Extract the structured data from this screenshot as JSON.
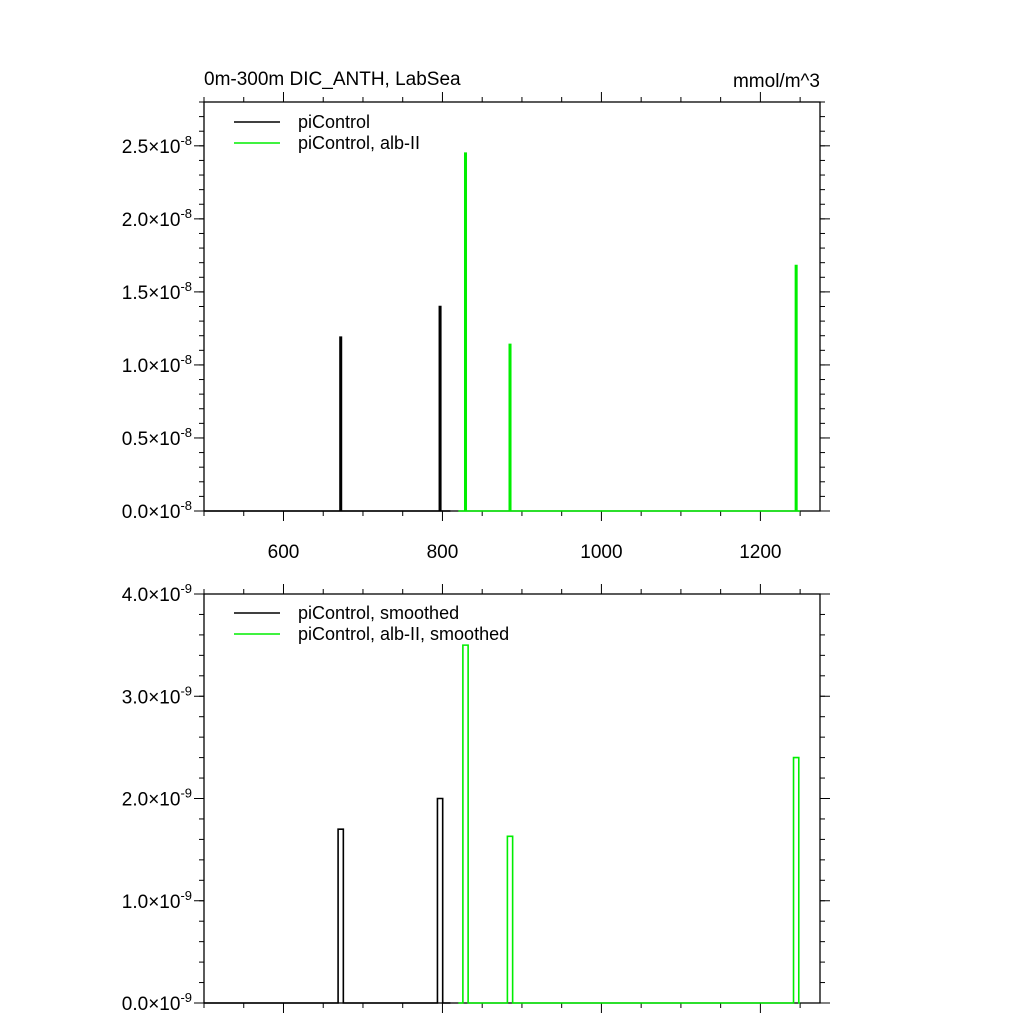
{
  "chart_data": [
    {
      "type": "line",
      "title": "0m-300m DIC_ANTH, LabSea",
      "units": "mmol/m^3",
      "xlim": [
        500,
        1275
      ],
      "ylim": [
        0,
        2.8e-08
      ],
      "x_ticks": [
        "600",
        "800",
        "1000",
        "1200"
      ],
      "y_ticks": [
        {
          "mant": "0.0",
          "exp": "-8"
        },
        {
          "mant": "0.5",
          "exp": "-8"
        },
        {
          "mant": "1.0",
          "exp": "-8"
        },
        {
          "mant": "1.5",
          "exp": "-8"
        },
        {
          "mant": "2.0",
          "exp": "-8"
        },
        {
          "mant": "2.5",
          "exp": "-8"
        }
      ],
      "legend": "top-left",
      "series": [
        {
          "name": "piControl",
          "color": "#000000",
          "x_range": [
            500,
            810
          ],
          "spikes": [
            [
              672,
              1.19e-08
            ],
            [
              797,
              1.4e-08
            ]
          ]
        },
        {
          "name": "piControl, alb-II",
          "color": "#00ee00",
          "x_range": [
            820,
            1250
          ],
          "spikes": [
            [
              829,
              2.45e-08
            ],
            [
              885,
              1.14e-08
            ],
            [
              1245,
              1.68e-08
            ]
          ]
        }
      ]
    },
    {
      "type": "line",
      "title": "",
      "xlim": [
        500,
        1275
      ],
      "ylim": [
        0,
        4e-09
      ],
      "x_ticks": [
        "",
        "",
        "",
        ""
      ],
      "y_ticks": [
        {
          "mant": "0.0",
          "exp": "-9"
        },
        {
          "mant": "1.0",
          "exp": "-9"
        },
        {
          "mant": "2.0",
          "exp": "-9"
        },
        {
          "mant": "3.0",
          "exp": "-9"
        },
        {
          "mant": "4.0",
          "exp": "-9"
        }
      ],
      "legend": "top-left",
      "series": [
        {
          "name": "piControl, smoothed",
          "color": "#000000",
          "x_range": [
            500,
            810
          ],
          "spikes": [
            [
              672,
              1.7e-09
            ],
            [
              797,
              2e-09
            ]
          ]
        },
        {
          "name": "piControl, alb-II, smoothed",
          "color": "#00ee00",
          "x_range": [
            820,
            1250
          ],
          "spikes": [
            [
              829,
              3.5e-09
            ],
            [
              885,
              1.63e-09
            ],
            [
              1245,
              2.4e-09
            ]
          ]
        }
      ]
    }
  ]
}
